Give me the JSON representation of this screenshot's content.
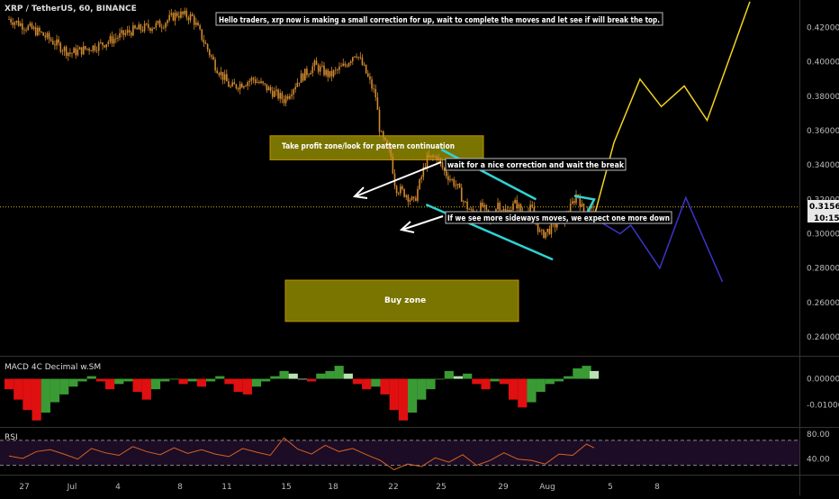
{
  "symbol_title": "XRP / TetherUS, 60, BINANCE",
  "colors": {
    "background": "#000000",
    "candle": "#d2892e",
    "axis_text": "#bbbbbb",
    "current_price_line": "#d4b300",
    "price_label_bg": "#e8e8e8",
    "channel": "#2fd3d3",
    "yellow_path": "#f3d21e",
    "blue_path": "#3b34c9",
    "zone_fill": "#7a7400",
    "zone_border": "#c09000",
    "macd_up": "#3a9b34",
    "macd_down": "#e01010",
    "macd_light": "#b8e2b0",
    "rsi_line": "#d56321",
    "rsi_band": "#1c0c26",
    "annotation_bg": "#000000"
  },
  "chart_data": [
    {
      "type": "candlestick",
      "title": "XRP / TetherUS, 60, BINANCE",
      "x_ticks": [
        "27",
        "Jul",
        "4",
        "8",
        "11",
        "15",
        "18",
        "22",
        "25",
        "29",
        "Aug",
        "5",
        "8"
      ],
      "y_ticks": [
        "0.42000",
        "0.40000",
        "0.38000",
        "0.36000",
        "0.34000",
        "0.32000",
        "0.30000",
        "0.28000",
        "0.26000",
        "0.24000"
      ],
      "ylim": [
        0.229,
        0.436
      ],
      "current_price": "0.31563",
      "countdown": "10:15",
      "close_path": [
        [
          0,
          0.425
        ],
        [
          2,
          0.417
        ],
        [
          4,
          0.405
        ],
        [
          6,
          0.41
        ],
        [
          8,
          0.418
        ],
        [
          10,
          0.422
        ],
        [
          11,
          0.428
        ],
        [
          12,
          0.426
        ],
        [
          13.5,
          0.398
        ],
        [
          14.5,
          0.385
        ],
        [
          16,
          0.39
        ],
        [
          17,
          0.384
        ],
        [
          18,
          0.378
        ],
        [
          19,
          0.39
        ],
        [
          20,
          0.398
        ],
        [
          21,
          0.392
        ],
        [
          22,
          0.398
        ],
        [
          22.7,
          0.406
        ],
        [
          23.3,
          0.395
        ],
        [
          24,
          0.38
        ],
        [
          24.3,
          0.358
        ],
        [
          25,
          0.345
        ],
        [
          25.3,
          0.327
        ],
        [
          26,
          0.323
        ],
        [
          26.5,
          0.318
        ],
        [
          27,
          0.333
        ],
        [
          27.3,
          0.343
        ],
        [
          28,
          0.345
        ],
        [
          28.5,
          0.336
        ],
        [
          29.3,
          0.328
        ],
        [
          29.8,
          0.318
        ],
        [
          30.3,
          0.312
        ],
        [
          31,
          0.316
        ],
        [
          31.5,
          0.307
        ],
        [
          32,
          0.318
        ],
        [
          32.5,
          0.312
        ],
        [
          33.2,
          0.318
        ],
        [
          33.7,
          0.31
        ],
        [
          34.2,
          0.315
        ],
        [
          34.8,
          0.299
        ],
        [
          35.3,
          0.302
        ],
        [
          36,
          0.307
        ],
        [
          36.5,
          0.31
        ],
        [
          36.9,
          0.318
        ],
        [
          37.2,
          0.324
        ],
        [
          37.6,
          0.312
        ],
        [
          38,
          0.316
        ],
        [
          38.3,
          0.313
        ]
      ],
      "annotations": [
        "Hello traders, xrp now is making a small correction for up, wait to complete the moves and let see if will break the top.",
        "Take profit zone/look for pattern continuation",
        "wait for a nice correction and wait the break",
        "If we see more sideways moves, we expect one more down",
        "Buy zone"
      ],
      "take_profit_zone": [
        0.343,
        0.357
      ],
      "buy_zone": [
        0.249,
        0.273
      ],
      "yellow_projection": [
        [
          38.3,
          0.31
        ],
        [
          39.6,
          0.353
        ],
        [
          41.3,
          0.39
        ],
        [
          42.7,
          0.374
        ],
        [
          44.2,
          0.386
        ],
        [
          45.7,
          0.366
        ],
        [
          48.5,
          0.435
        ]
      ],
      "blue_projection": [
        [
          38.3,
          0.309
        ],
        [
          40,
          0.3
        ],
        [
          40.7,
          0.305
        ],
        [
          42.6,
          0.28
        ],
        [
          44.3,
          0.321
        ],
        [
          46.7,
          0.272
        ]
      ],
      "channel": {
        "upper": [
          [
            28.3,
            0.349
          ],
          [
            34.5,
            0.32
          ]
        ],
        "lower": [
          [
            27.3,
            0.317
          ],
          [
            35.6,
            0.285
          ]
        ],
        "flag": [
          [
            37,
            0.322
          ],
          [
            38.3,
            0.32
          ],
          [
            37.6,
            0.308
          ],
          [
            34.7,
            0.309
          ]
        ]
      }
    },
    {
      "type": "bar",
      "title": "MACD 4C Decimal w.SM",
      "y_ticks": [
        "0.00000",
        "-0.01000"
      ],
      "ylim": [
        -0.0185,
        0.0085
      ],
      "x": [
        0,
        0.6,
        1.2,
        1.8,
        2.4,
        3,
        3.6,
        4.2,
        4.8,
        5.4,
        6,
        6.6,
        7.2,
        7.8,
        8.4,
        9,
        9.6,
        10.2,
        10.8,
        11.4,
        12,
        12.6,
        13.2,
        13.8,
        14.4,
        15,
        15.6,
        16.2,
        16.8,
        17.4,
        18,
        18.6,
        19.2,
        19.8,
        20.4,
        21,
        21.6,
        22.2,
        22.8,
        23.4,
        24,
        24.6,
        25.2,
        25.8,
        26.4,
        27,
        27.6,
        28.2,
        28.8,
        29.4,
        30,
        30.6,
        31.2,
        31.8,
        32.4,
        33,
        33.6,
        34.2,
        34.8,
        35.4,
        36,
        36.6,
        37.2,
        37.8,
        38.3
      ],
      "values": [
        -0.004,
        -0.008,
        -0.012,
        -0.016,
        -0.013,
        -0.009,
        -0.006,
        -0.003,
        -0.001,
        0.001,
        -0.001,
        -0.004,
        -0.002,
        -0.001,
        -0.005,
        -0.008,
        -0.004,
        -0.001,
        -0.0,
        -0.002,
        -0.001,
        -0.003,
        -0.001,
        0.001,
        -0.002,
        -0.005,
        -0.006,
        -0.003,
        -0.001,
        0.001,
        0.003,
        0.002,
        0.0,
        -0.001,
        0.002,
        0.003,
        0.005,
        0.002,
        -0.002,
        -0.004,
        -0.003,
        -0.006,
        -0.012,
        -0.016,
        -0.013,
        -0.008,
        -0.004,
        0.0,
        0.003,
        0.001,
        0.002,
        -0.002,
        -0.004,
        -0.001,
        -0.002,
        -0.008,
        -0.011,
        -0.009,
        -0.005,
        -0.002,
        -0.001,
        0.001,
        0.004,
        0.005,
        0.003
      ]
    },
    {
      "type": "line",
      "title": "RSI",
      "y_ticks": [
        "80.00",
        "40.00"
      ],
      "ylim": [
        15,
        90
      ],
      "bands": [
        70,
        30
      ],
      "x": [
        0,
        0.9,
        1.8,
        2.7,
        3.6,
        4.5,
        5.4,
        6.3,
        7.2,
        8.1,
        9,
        9.9,
        10.8,
        11.7,
        12.6,
        13.5,
        14.4,
        15.3,
        16.2,
        17.1,
        18,
        18.9,
        19.8,
        20.7,
        21.6,
        22.5,
        23.4,
        24.3,
        25.2,
        26.1,
        27,
        27.9,
        28.8,
        29.7,
        30.6,
        31.5,
        32.4,
        33.3,
        34.2,
        35.1,
        36,
        36.9,
        37.8,
        38.3
      ],
      "values": [
        45,
        41,
        52,
        55,
        48,
        40,
        57,
        50,
        46,
        60,
        52,
        47,
        58,
        49,
        55,
        48,
        44,
        57,
        51,
        46,
        74,
        56,
        48,
        62,
        52,
        57,
        47,
        38,
        23,
        32,
        28,
        42,
        35,
        47,
        30,
        38,
        50,
        40,
        38,
        32,
        48,
        46,
        64,
        58
      ]
    }
  ]
}
